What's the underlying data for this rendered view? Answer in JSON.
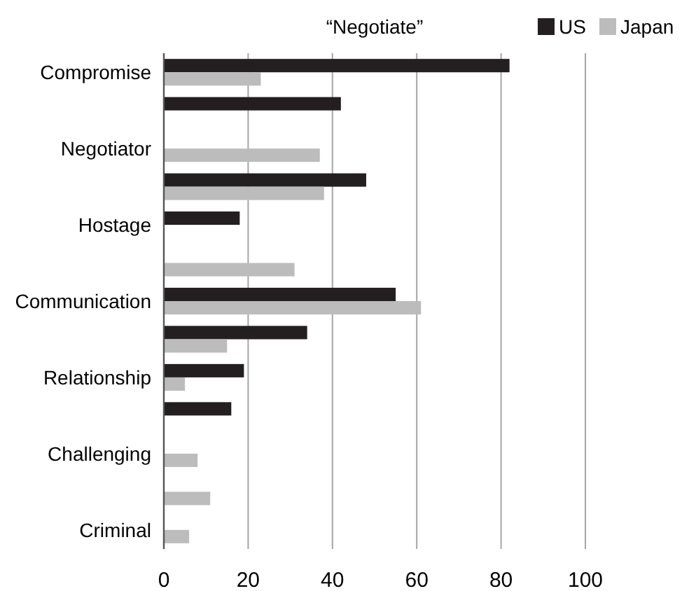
{
  "chart_data": {
    "type": "bar",
    "orientation": "horizontal",
    "title": "“Negotiate”",
    "categories": [
      "Compromise",
      null,
      "Negotiator",
      null,
      "Hostage",
      null,
      "Communication",
      null,
      "Relationship",
      null,
      "Challenging",
      null,
      "Criminal"
    ],
    "series": [
      {
        "name": "US",
        "color": "#231f20",
        "values": [
          82,
          42,
          null,
          48,
          18,
          null,
          55,
          34,
          19,
          16,
          null,
          null,
          null
        ]
      },
      {
        "name": "Japan",
        "color": "#bcbcbc",
        "values": [
          23,
          null,
          37,
          38,
          null,
          31,
          61,
          15,
          5,
          null,
          8,
          11,
          6
        ]
      }
    ],
    "xlim": [
      0,
      100
    ],
    "xticks": [
      0,
      20,
      40,
      60,
      80,
      100
    ],
    "grid": "x",
    "legend": "top right"
  }
}
